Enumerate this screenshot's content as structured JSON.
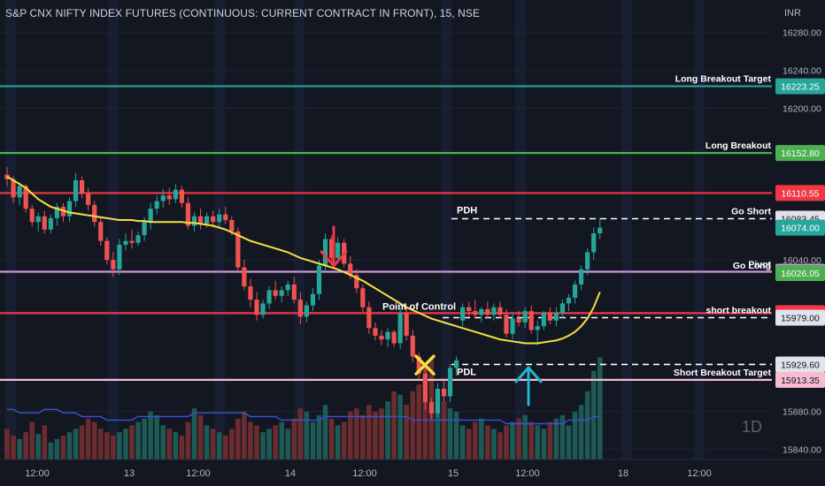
{
  "header": {
    "title": "S&P CNX NIFTY INDEX FUTURES (CONTINUOUS: CURRENT CONTRACT IN FRONT), 15, NSE",
    "currency": "INR",
    "interval_badge": "1D"
  },
  "colors": {
    "background": "#131722",
    "bull": "#26a69a",
    "bear": "#ef5350",
    "vwap": "#f5e042",
    "volume_ma": "#3d52d5",
    "pdh_pdl": "#ffffff",
    "marker_down": "#f23645",
    "marker_up": "#1fb8d4",
    "marker_x": "#f5e042"
  },
  "chart_data": {
    "type": "candlestick",
    "ylim": [
      15820,
      16290
    ],
    "y_ticks": [
      15840.0,
      15880.0,
      16040.0,
      16200.0,
      16240.0,
      16280.0
    ],
    "x_ticks": [
      "12:00",
      "13",
      "12:00",
      "14",
      "12:00",
      "15",
      "12:00",
      "18",
      "12:00"
    ],
    "levels": [
      {
        "label": "Long Breakout Target",
        "price_label": "16223.25",
        "value": 16223.25,
        "color": "#26a69a",
        "label_color": "#ffffff"
      },
      {
        "label": "Long Breakout",
        "price_label": "16152.80",
        "value": 16152.8,
        "color": "#4caf50",
        "label_color": "#ffffff"
      },
      {
        "label": "",
        "price_label": "16110.55",
        "value": 16110.55,
        "color": "#f23645",
        "label_color": "#ffffff"
      },
      {
        "label": "Go Short",
        "price_label": "16083.45",
        "value": 16083.45,
        "color": "",
        "label_color": "#131722"
      },
      {
        "label": "",
        "price_label": "16074.00",
        "value": 16074.0,
        "color": "",
        "label_color": "#ffffff"
      },
      {
        "label": "Pivot",
        "price_label": "16027.50",
        "value": 16027.5,
        "color": "#ce93d8",
        "label_color": "#131722"
      },
      {
        "label": "Go Long",
        "price_label": "16026.05",
        "value": 16026.05,
        "color": "",
        "label_color": "#ffffff"
      },
      {
        "label": "",
        "price_label": "15983.80",
        "value": 15983.8,
        "color": "#f23645",
        "label_color": "#ffffff"
      },
      {
        "label": "short breakout",
        "price_label": "15979.00",
        "value": 15979.0,
        "color": "",
        "label_color": "#131722"
      },
      {
        "label": "",
        "price_label": "15929.60",
        "value": 15929.6,
        "color": "",
        "label_color": "#131722"
      },
      {
        "label": "Short  Breakout Target",
        "price_label": "15913.35",
        "value": 15913.35,
        "color": "#f8bbd0",
        "label_color": "#131722"
      }
    ],
    "annotations": {
      "pdh": {
        "label": "PDH",
        "value": 16083.45
      },
      "pdl": {
        "label": "PDL",
        "value": 15929.6
      },
      "poc": {
        "label": "Point of Control",
        "value": 15983.8
      }
    },
    "candles": [
      [
        16130,
        16138,
        16118,
        16125
      ],
      [
        16125,
        16128,
        16100,
        16106
      ],
      [
        16106,
        16122,
        16098,
        16118
      ],
      [
        16118,
        16120,
        16090,
        16094
      ],
      [
        16094,
        16098,
        16075,
        16080
      ],
      [
        16080,
        16090,
        16070,
        16086
      ],
      [
        16086,
        16092,
        16068,
        16072
      ],
      [
        16072,
        16088,
        16068,
        16084
      ],
      [
        16084,
        16100,
        16076,
        16096
      ],
      [
        16096,
        16100,
        16080,
        16086
      ],
      [
        16086,
        16106,
        16080,
        16102
      ],
      [
        16102,
        16132,
        16096,
        16124
      ],
      [
        16124,
        16128,
        16105,
        16110
      ],
      [
        16110,
        16116,
        16092,
        16098
      ],
      [
        16098,
        16102,
        16075,
        16080
      ],
      [
        16080,
        16084,
        16055,
        16060
      ],
      [
        16060,
        16064,
        16035,
        16040
      ],
      [
        16040,
        16048,
        16022,
        16030
      ],
      [
        16030,
        16062,
        16024,
        16056
      ],
      [
        16056,
        16068,
        16050,
        16060
      ],
      [
        16060,
        16072,
        16052,
        16058
      ],
      [
        16058,
        16070,
        16055,
        16066
      ],
      [
        16066,
        16085,
        16060,
        16080
      ],
      [
        16080,
        16100,
        16072,
        16094
      ],
      [
        16094,
        16108,
        16088,
        16102
      ],
      [
        16102,
        16115,
        16095,
        16108
      ],
      [
        16108,
        16116,
        16098,
        16104
      ],
      [
        16104,
        16120,
        16100,
        16114
      ],
      [
        16114,
        16118,
        16095,
        16100
      ],
      [
        16100,
        16106,
        16072,
        16076
      ],
      [
        16076,
        16090,
        16070,
        16086
      ],
      [
        16086,
        16094,
        16072,
        16078
      ],
      [
        16078,
        16090,
        16074,
        16086
      ],
      [
        16086,
        16092,
        16074,
        16080
      ],
      [
        16080,
        16094,
        16074,
        16088
      ],
      [
        16088,
        16096,
        16078,
        16082
      ],
      [
        16082,
        16086,
        16066,
        16070
      ],
      [
        16070,
        16074,
        16028,
        16032
      ],
      [
        16032,
        16040,
        16008,
        16012
      ],
      [
        16012,
        16020,
        15990,
        15998
      ],
      [
        15998,
        16006,
        15976,
        15982
      ],
      [
        15982,
        15998,
        15978,
        15994
      ],
      [
        15994,
        16012,
        15988,
        16008
      ],
      [
        16008,
        16018,
        15998,
        16002
      ],
      [
        16002,
        16012,
        15995,
        16008
      ],
      [
        16008,
        16018,
        16002,
        16014
      ],
      [
        16014,
        16022,
        15994,
        15998
      ],
      [
        15998,
        16006,
        15972,
        15980
      ],
      [
        15980,
        15996,
        15974,
        15992
      ],
      [
        15992,
        16010,
        15986,
        16004
      ],
      [
        16004,
        16040,
        15998,
        16034
      ],
      [
        16034,
        16068,
        16028,
        16062
      ],
      [
        16062,
        16066,
        16038,
        16042
      ],
      [
        16042,
        16064,
        16036,
        16058
      ],
      [
        16058,
        16062,
        16032,
        16036
      ],
      [
        16036,
        16044,
        16020,
        16024
      ],
      [
        16024,
        16030,
        16005,
        16010
      ],
      [
        16010,
        16014,
        15985,
        15990
      ],
      [
        15990,
        15996,
        15962,
        15968
      ],
      [
        15968,
        15974,
        15955,
        15960
      ],
      [
        15960,
        15966,
        15950,
        15956
      ],
      [
        15956,
        15968,
        15948,
        15964
      ],
      [
        15964,
        15966,
        15948,
        15952
      ],
      [
        15952,
        15990,
        15946,
        15984
      ],
      [
        15984,
        15990,
        15955,
        15960
      ],
      [
        15960,
        15966,
        15932,
        15938
      ],
      [
        15938,
        15942,
        15914,
        15920
      ],
      [
        15920,
        15926,
        15882,
        15890
      ],
      [
        15890,
        15894,
        15872,
        15878
      ],
      [
        15878,
        15910,
        15874,
        15904
      ],
      [
        15904,
        15912,
        15890,
        15896
      ],
      [
        15896,
        15930,
        15890,
        15926
      ],
      [
        15926,
        15938,
        15918,
        15934
      ],
      [
        15976,
        15994,
        15970,
        15990
      ],
      [
        15990,
        15996,
        15980,
        15986
      ],
      [
        15986,
        15998,
        15978,
        15982
      ],
      [
        15982,
        15990,
        15974,
        15988
      ],
      [
        15988,
        15996,
        15978,
        15982
      ],
      [
        15982,
        15994,
        15976,
        15990
      ],
      [
        15990,
        15996,
        15978,
        15982
      ],
      [
        15982,
        15988,
        15958,
        15962
      ],
      [
        15962,
        15984,
        15956,
        15978
      ],
      [
        15978,
        15986,
        15970,
        15974
      ],
      [
        15974,
        15990,
        15968,
        15986
      ],
      [
        15986,
        15992,
        15962,
        15966
      ],
      [
        15966,
        15976,
        15950,
        15970
      ],
      [
        15970,
        15986,
        15966,
        15984
      ],
      [
        15984,
        15990,
        15972,
        15976
      ],
      [
        15976,
        15990,
        15970,
        15984
      ],
      [
        15984,
        15998,
        15978,
        15994
      ],
      [
        15994,
        16004,
        15986,
        16000
      ],
      [
        16000,
        16018,
        15994,
        16014
      ],
      [
        16014,
        16034,
        16008,
        16030
      ],
      [
        16030,
        16052,
        16024,
        16048
      ],
      [
        16048,
        16074,
        16040,
        16068
      ],
      [
        16068,
        16084,
        16062,
        16074
      ]
    ],
    "volume": [
      18,
      14,
      12,
      16,
      22,
      15,
      20,
      10,
      12,
      14,
      16,
      18,
      20,
      24,
      22,
      18,
      16,
      14,
      16,
      18,
      20,
      22,
      24,
      28,
      26,
      20,
      18,
      16,
      14,
      22,
      30,
      26,
      20,
      18,
      16,
      14,
      18,
      24,
      28,
      22,
      20,
      16,
      18,
      20,
      22,
      18,
      24,
      30,
      28,
      22,
      26,
      32,
      24,
      20,
      22,
      28,
      30,
      26,
      32,
      28,
      30,
      34,
      40,
      38,
      32,
      40,
      44,
      56,
      60,
      38,
      34,
      30,
      28,
      20,
      18,
      22,
      24,
      20,
      18,
      16,
      20,
      22,
      24,
      26,
      22,
      20,
      18,
      22,
      24,
      26,
      20,
      28,
      32,
      40,
      52,
      60
    ],
    "vwap": [
      16128,
      16124,
      16120,
      16116,
      16110,
      16104,
      16100,
      16096,
      16094,
      16092,
      16090,
      16089,
      16088,
      16087,
      16086,
      16085,
      16084,
      16083,
      16082,
      16082,
      16082,
      16081,
      16081,
      16080,
      16080,
      16080,
      16080,
      16080,
      16080,
      16079,
      16079,
      16078,
      16077,
      16076,
      16074,
      16072,
      16069,
      16066,
      16063,
      16060,
      16058,
      16056,
      16054,
      16052,
      16050,
      16048,
      16045,
      16042,
      16040,
      16038,
      16036,
      16034,
      16032,
      16030,
      16027,
      16024,
      16021,
      16018,
      16014,
      16010,
      16006,
      16002,
      15998,
      15994,
      15990,
      15987,
      15984,
      15981,
      15978,
      15976,
      15974,
      15972,
      15970,
      15968,
      15966,
      15964,
      15962,
      15960,
      15958,
      15956,
      15955,
      15954,
      15953,
      15952,
      15952,
      15952,
      15953,
      15954,
      15955,
      15957,
      15960,
      15964,
      15970,
      15978,
      15990,
      16006
    ],
    "volume_ma": [
      14,
      14,
      13,
      13,
      13,
      13,
      14,
      14,
      14,
      13,
      13,
      13,
      12,
      12,
      12,
      12,
      11,
      11,
      11,
      11,
      11,
      12,
      12,
      12,
      12,
      12,
      12,
      12,
      12,
      12,
      13,
      13,
      13,
      13,
      13,
      13,
      13,
      13,
      13,
      12,
      12,
      12,
      12,
      12,
      11,
      11,
      11,
      11,
      11,
      11,
      11,
      12,
      12,
      12,
      12,
      12,
      12,
      12,
      12,
      12,
      12,
      12,
      12,
      12,
      12,
      11,
      11,
      11,
      11,
      11,
      11,
      11,
      11,
      11,
      11,
      11,
      11,
      11,
      11,
      11,
      10,
      10,
      10,
      10,
      10,
      10,
      10,
      10,
      10,
      10,
      11,
      11,
      11,
      11,
      12,
      12
    ]
  }
}
